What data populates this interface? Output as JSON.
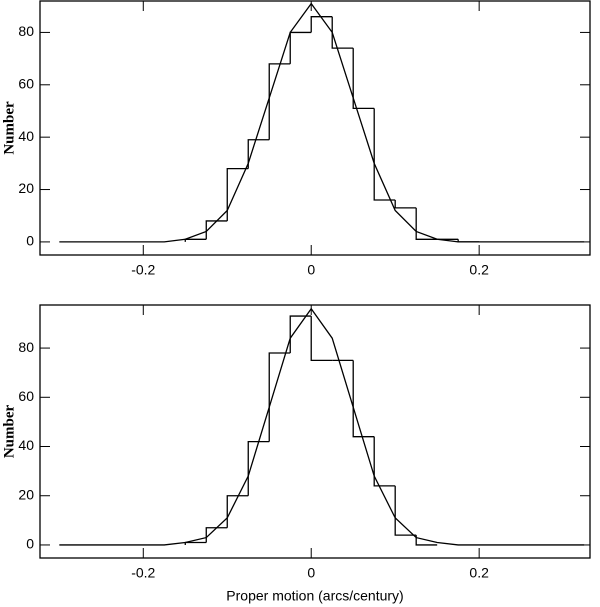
{
  "chart_data": [
    {
      "type": "histogram",
      "y_label": "Number",
      "bins": [
        -0.15,
        -0.125,
        -0.1,
        -0.075,
        -0.05,
        -0.025,
        0,
        0.025,
        0.05,
        0.075,
        0.1,
        0.125,
        0.15,
        0.175,
        0.2
      ],
      "values": [
        1,
        8,
        28,
        39,
        68,
        80,
        86,
        74,
        51,
        16,
        13,
        1,
        1,
        0
      ],
      "line": {
        "x": [
          -0.3,
          -0.275,
          -0.25,
          -0.225,
          -0.2,
          -0.175,
          -0.15,
          -0.125,
          -0.1,
          -0.075,
          -0.05,
          -0.025,
          0,
          0.025,
          0.05,
          0.075,
          0.1,
          0.125,
          0.15,
          0.175,
          0.2,
          0.225,
          0.25,
          0.275,
          0.3,
          0.325
        ],
        "values": [
          0,
          0,
          0,
          0,
          0,
          0,
          1,
          4,
          12,
          30,
          55,
          80,
          91,
          80,
          55,
          30,
          12,
          4,
          1,
          0,
          0,
          0,
          0,
          0,
          0,
          0
        ]
      },
      "xlim": [
        -0.323,
        0.332
      ],
      "ylim": [
        -5,
        92
      ],
      "xticks": [
        -0.2,
        0,
        0.2
      ],
      "yticks": [
        0,
        20,
        40,
        60,
        80
      ]
    },
    {
      "type": "histogram",
      "y_label": "Number",
      "x_label": "Proper motion (arcs/century)",
      "bins": [
        -0.15,
        -0.125,
        -0.1,
        -0.075,
        -0.05,
        -0.025,
        0,
        0.025,
        0.05,
        0.075,
        0.1,
        0.125,
        0.15
      ],
      "values": [
        1,
        7,
        20,
        42,
        78,
        93,
        75,
        75,
        44,
        24,
        4,
        0
      ],
      "line": {
        "x": [
          -0.3,
          -0.275,
          -0.25,
          -0.225,
          -0.2,
          -0.175,
          -0.15,
          -0.125,
          -0.1,
          -0.075,
          -0.05,
          -0.025,
          0,
          0.025,
          0.05,
          0.075,
          0.1,
          0.125,
          0.15,
          0.175,
          0.2,
          0.225,
          0.25,
          0.275,
          0.3,
          0.325
        ],
        "values": [
          0,
          0,
          0,
          0,
          0,
          0,
          1,
          3,
          11,
          28,
          56,
          84,
          96,
          84,
          56,
          28,
          11,
          3,
          1,
          0,
          0,
          0,
          0,
          0,
          0,
          0
        ]
      },
      "xlim": [
        -0.323,
        0.332
      ],
      "ylim": [
        -5.3,
        97.5
      ],
      "xticks": [
        -0.2,
        0,
        0.2
      ],
      "yticks": [
        0,
        20,
        40,
        60,
        80
      ]
    }
  ]
}
